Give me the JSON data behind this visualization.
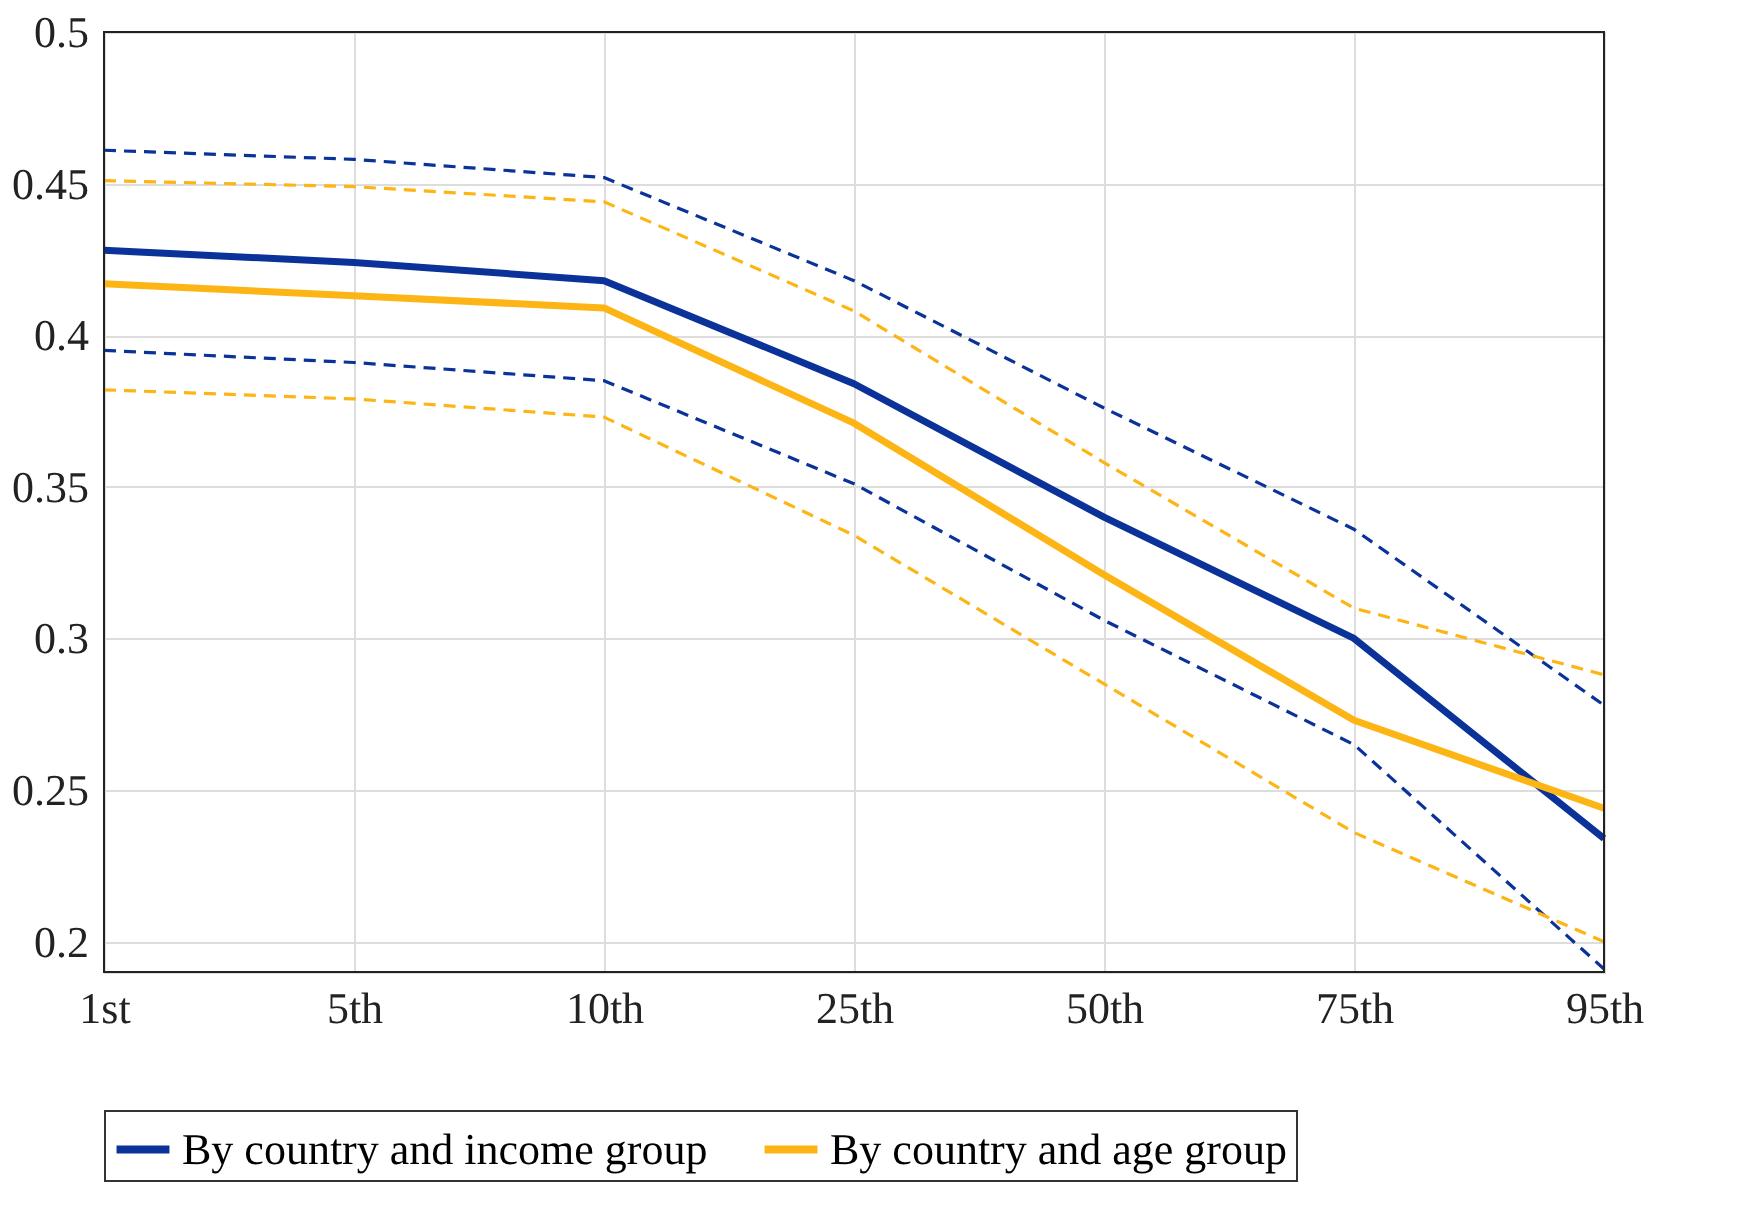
{
  "chart_data": {
    "type": "line",
    "categories": [
      "1st",
      "5th",
      "10th",
      "25th",
      "50th",
      "75th",
      "95th"
    ],
    "ylim": [
      0.19,
      0.5
    ],
    "yticks": [
      0.2,
      0.25,
      0.3,
      0.35,
      0.4,
      0.45,
      0.5
    ],
    "grid": true,
    "legend": "bottom",
    "marker": "none",
    "series": [
      {
        "name": "By country and income group",
        "color": "#0a3299",
        "line_style": "solid",
        "values": [
          0.428,
          0.424,
          0.418,
          0.384,
          0.34,
          0.3,
          0.234
        ]
      },
      {
        "name": "By country and age group",
        "color": "#fdb515",
        "line_style": "solid",
        "values": [
          0.417,
          0.413,
          0.409,
          0.371,
          0.321,
          0.273,
          0.244
        ]
      },
      {
        "color": "#0a3299",
        "line_style": "dashed",
        "values": [
          0.461,
          0.458,
          0.452,
          0.418,
          0.376,
          0.336,
          0.278
        ]
      },
      {
        "color": "#0a3299",
        "line_style": "dashed",
        "values": [
          0.395,
          0.391,
          0.385,
          0.351,
          0.306,
          0.265,
          0.191
        ]
      },
      {
        "color": "#fdb515",
        "line_style": "dashed",
        "values": [
          0.451,
          0.449,
          0.444,
          0.408,
          0.358,
          0.31,
          0.288
        ]
      },
      {
        "color": "#fdb515",
        "line_style": "dashed",
        "values": [
          0.382,
          0.379,
          0.373,
          0.334,
          0.285,
          0.236,
          0.2
        ]
      }
    ]
  }
}
